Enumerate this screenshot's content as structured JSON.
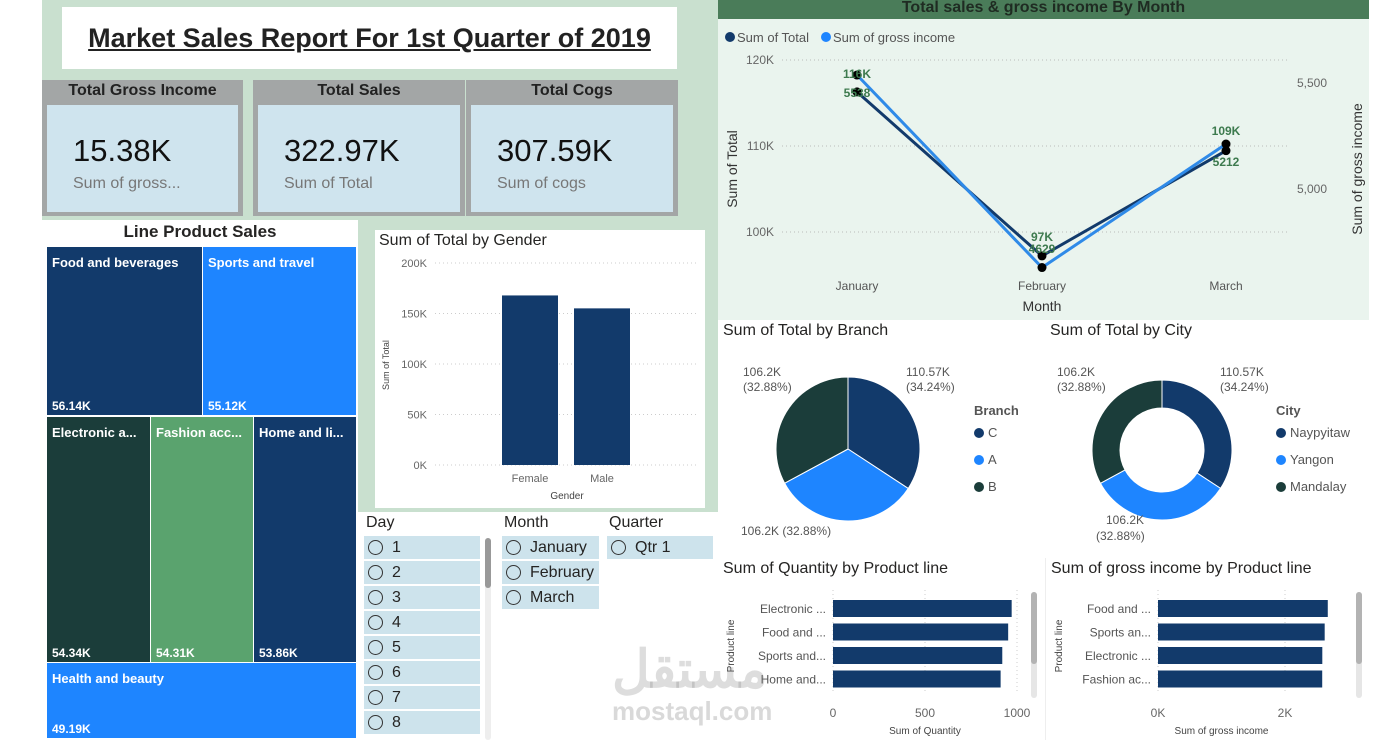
{
  "title": "Market Sales Report For 1st Quarter of 2019",
  "kpis": [
    {
      "header": "Total Gross Income",
      "value": "15.38K",
      "label": "Sum of gross..."
    },
    {
      "header": "Total Sales",
      "value": "322.97K",
      "label": "Sum of Total"
    },
    {
      "header": "Total Cogs",
      "value": "307.59K",
      "label": "Sum of cogs"
    }
  ],
  "slicers": {
    "day": {
      "title": "Day",
      "options": [
        "1",
        "2",
        "3",
        "4",
        "5",
        "6",
        "7",
        "8"
      ]
    },
    "month": {
      "title": "Month",
      "options": [
        "January",
        "February",
        "March"
      ]
    },
    "quarter": {
      "title": "Quarter",
      "options": [
        "Qtr 1"
      ]
    }
  },
  "watermark": {
    "arabic": "مستقل",
    "latin": "mostaql.com"
  },
  "colors": {
    "navy": "#123a6b",
    "blue": "#1e85ff",
    "darkgreen": "#1b3d3a",
    "green": "#5aa36e",
    "header_green": "#4a7c59"
  },
  "chart_data": [
    {
      "id": "treemap",
      "type": "treemap",
      "title": "Line Product Sales",
      "items": [
        {
          "label": "Food and beverages",
          "display": "Food and beverages",
          "value": "56.14K",
          "color": "#123a6b"
        },
        {
          "label": "Sports and travel",
          "display": "Sports and travel",
          "value": "55.12K",
          "color": "#1e85ff"
        },
        {
          "label": "Electronic accessories",
          "display": "Electronic a...",
          "value": "54.34K",
          "color": "#1b3d3a"
        },
        {
          "label": "Fashion accessories",
          "display": "Fashion acc...",
          "value": "54.31K",
          "color": "#5aa36e"
        },
        {
          "label": "Home and lifestyle",
          "display": "Home and li...",
          "value": "53.86K",
          "color": "#123a6b"
        },
        {
          "label": "Health and beauty",
          "display": "Health and beauty",
          "value": "49.19K",
          "color": "#1e85ff"
        }
      ]
    },
    {
      "id": "gender",
      "type": "bar",
      "title": "Sum of Total by Gender",
      "xlabel": "Gender",
      "ylabel": "Sum of Total",
      "categories": [
        "Female",
        "Male"
      ],
      "values": [
        167.88,
        155.08
      ],
      "ylim": [
        0,
        200
      ],
      "ticks": [
        "0K",
        "50K",
        "100K",
        "150K",
        "200K"
      ],
      "color": "#123a6b"
    },
    {
      "id": "monthly",
      "type": "line",
      "title": "Total sales & gross income By Month",
      "xlabel": "Month",
      "ylabel": "Sum of Total",
      "y2label": "Sum of gross income",
      "categories": [
        "January",
        "February",
        "March"
      ],
      "left_ticks": [
        "100K",
        "110K",
        "120K"
      ],
      "right_ticks": [
        "5,000",
        "5,500"
      ],
      "series": [
        {
          "name": "Sum of Total",
          "values": [
            116.29,
            97.22,
            109.46
          ],
          "labels": [
            "116K",
            "97K",
            "109K"
          ],
          "color": "#123a6b",
          "axis": "left",
          "ylim": [
            90,
            120
          ]
        },
        {
          "name": "Sum of gross income",
          "values": [
            5537.7,
            4629.5,
            5212.2
          ],
          "labels": [
            "5538",
            "4629",
            "5212"
          ],
          "color": "#2f8ae8",
          "axis": "right",
          "ylim": [
            4500,
            5600
          ]
        }
      ]
    },
    {
      "id": "branch",
      "type": "pie",
      "title": "Sum of Total by Branch",
      "legend_title": "Branch",
      "slices": [
        {
          "name": "C",
          "value": 110.57,
          "label": "110.57K",
          "pct": "(34.24%)",
          "color": "#123a6b"
        },
        {
          "name": "A",
          "value": 106.2,
          "label": "106.2K",
          "pct": "(32.88%)",
          "color": "#1e85ff"
        },
        {
          "name": "B",
          "value": 106.2,
          "label": "106.2K",
          "pct": "(32.88%)",
          "color": "#1b3d3a"
        }
      ]
    },
    {
      "id": "city",
      "type": "donut",
      "title": "Sum of Total by City",
      "legend_title": "City",
      "slices": [
        {
          "name": "Naypyitaw",
          "value": 110.57,
          "label": "110.57K",
          "pct": "(34.24%)",
          "color": "#123a6b"
        },
        {
          "name": "Yangon",
          "value": 106.2,
          "label": "106.2K",
          "pct": "(32.88%)",
          "color": "#1e85ff"
        },
        {
          "name": "Mandalay",
          "value": 106.2,
          "label": "106.2K",
          "pct": "(32.88%)",
          "color": "#1b3d3a"
        }
      ]
    },
    {
      "id": "quantity",
      "type": "hbar",
      "title": "Sum of Quantity by Product line",
      "xlabel": "Sum of Quantity",
      "ylabel": "Product line",
      "categories": [
        "Electronic ...",
        "Food and ...",
        "Sports and...",
        "Home and..."
      ],
      "values": [
        971,
        952,
        920,
        911
      ],
      "xlim": [
        0,
        1000
      ],
      "ticks": [
        "0",
        "500",
        "1000"
      ]
    },
    {
      "id": "grossline",
      "type": "hbar",
      "title": "Sum of gross income by Product line",
      "xlabel": "Sum of gross income",
      "ylabel": "Product line",
      "categories": [
        "Food and ...",
        "Sports an...",
        "Electronic ...",
        "Fashion ac..."
      ],
      "values": [
        2673.6,
        2624.9,
        2587.5,
        2586.0
      ],
      "xlim": [
        0,
        2000
      ],
      "ticks": [
        "0K",
        "2K"
      ]
    }
  ]
}
